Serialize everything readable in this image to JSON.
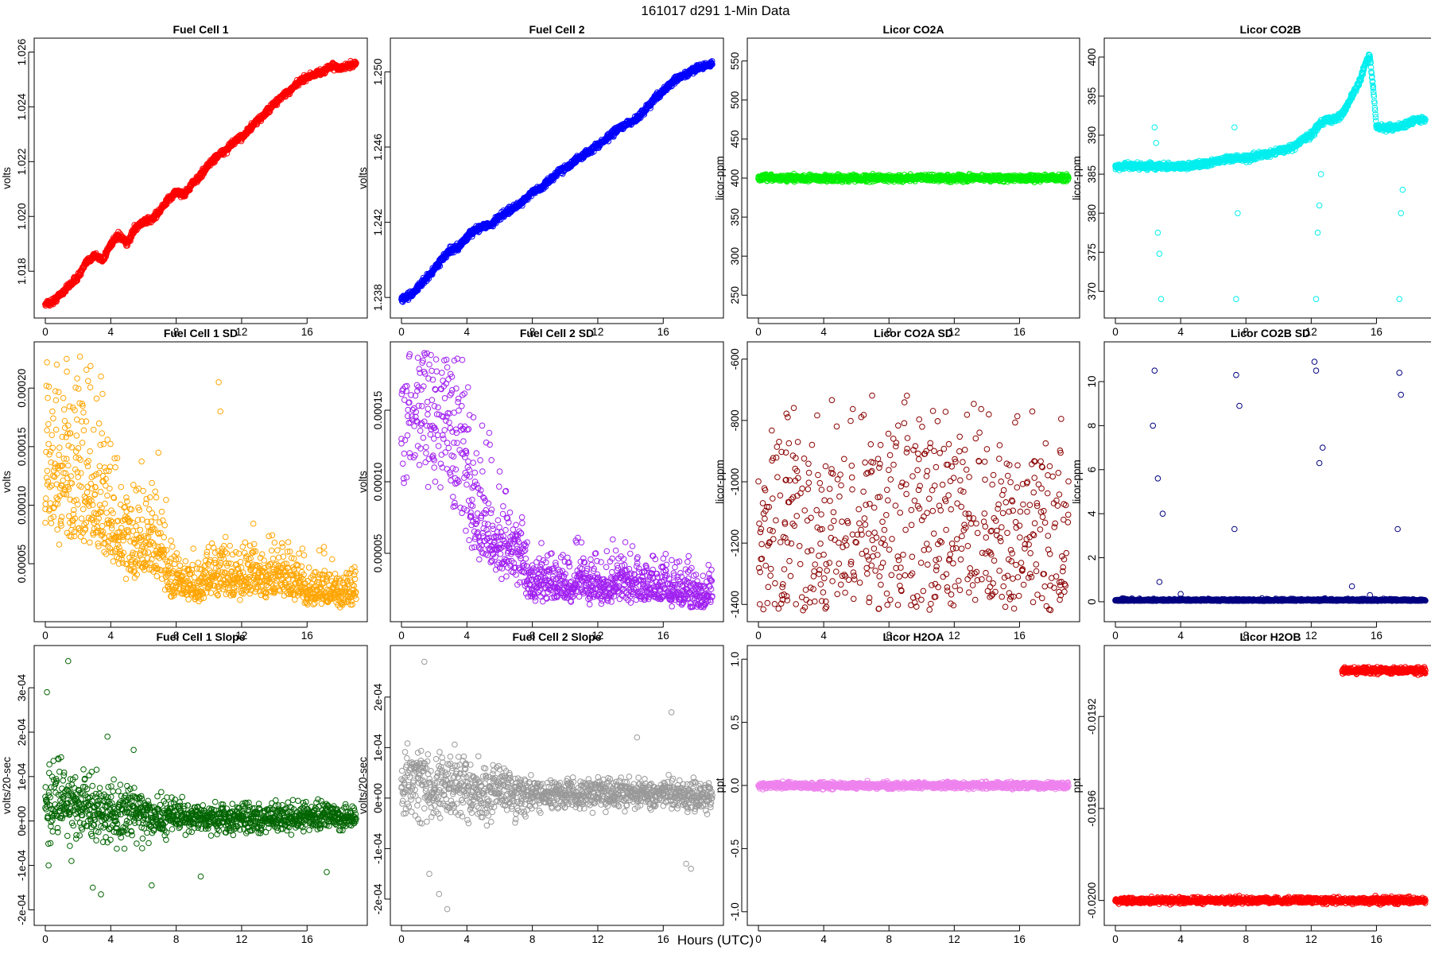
{
  "figure": {
    "title": "161017   d291   1-Min Data",
    "xlabel": "Hours (UTC)"
  },
  "chart_data": [
    {
      "type": "scatter",
      "title": "Fuel Cell 1",
      "ylabel": "volts",
      "color": "#ff0000",
      "xlim": [
        0,
        19
      ],
      "ylim": [
        1.0167,
        1.0261
      ],
      "xticks": [
        0,
        4,
        8,
        12,
        16
      ],
      "yticks": [
        1.018,
        1.02,
        1.022,
        1.024,
        1.026
      ],
      "ytick_labels": [
        "1.018",
        "1.020",
        "1.022",
        "1.024",
        "1.026"
      ],
      "series": [
        {
          "x": [
            0,
            0.5,
            1,
            1.5,
            2,
            2.5,
            3,
            3.5,
            4,
            4.5,
            5,
            5.5,
            6,
            6.5,
            7,
            7.5,
            8,
            8.5,
            9,
            9.5,
            10,
            10.5,
            11,
            11.5,
            12,
            12.5,
            13,
            13.5,
            14,
            14.5,
            15,
            15.5,
            16,
            16.5,
            17,
            17.5,
            18,
            18.5,
            19
          ],
          "y": [
            1.0168,
            1.0169,
            1.0172,
            1.0175,
            1.0178,
            1.0183,
            1.0186,
            1.0184,
            1.019,
            1.0193,
            1.019,
            1.0196,
            1.0198,
            1.0199,
            1.0202,
            1.0206,
            1.0209,
            1.0208,
            1.0212,
            1.0215,
            1.0219,
            1.0222,
            1.0224,
            1.0227,
            1.0229,
            1.0232,
            1.0235,
            1.0238,
            1.0241,
            1.0244,
            1.0246,
            1.0249,
            1.0251,
            1.0252,
            1.0253,
            1.0255,
            1.0254,
            1.0255,
            1.0256
          ]
        }
      ]
    },
    {
      "type": "scatter",
      "title": "Fuel Cell 2",
      "ylabel": "volts",
      "color": "#0000ff",
      "xlim": [
        0,
        19
      ],
      "ylim": [
        1.2375,
        1.2512
      ],
      "xticks": [
        0,
        4,
        8,
        12,
        16
      ],
      "yticks": [
        1.238,
        1.242,
        1.246,
        1.25
      ],
      "ytick_labels": [
        "1.238",
        "1.242",
        "1.246",
        "1.250"
      ],
      "series": [
        {
          "x": [
            0,
            0.5,
            1,
            1.5,
            2,
            2.5,
            3,
            3.5,
            4,
            4.5,
            5,
            5.5,
            6,
            6.5,
            7,
            7.5,
            8,
            8.5,
            9,
            9.5,
            10,
            10.5,
            11,
            11.5,
            12,
            12.5,
            13,
            13.5,
            14,
            14.5,
            15,
            15.5,
            16,
            16.5,
            17,
            17.5,
            18,
            18.5,
            19
          ],
          "y": [
            1.2379,
            1.2381,
            1.2385,
            1.239,
            1.2395,
            1.2401,
            1.2405,
            1.2407,
            1.2412,
            1.2416,
            1.2418,
            1.2419,
            1.2423,
            1.2426,
            1.2428,
            1.2432,
            1.2436,
            1.2438,
            1.2442,
            1.2446,
            1.2449,
            1.2452,
            1.2455,
            1.2458,
            1.2461,
            1.2464,
            1.2468,
            1.2471,
            1.2473,
            1.2476,
            1.2481,
            1.2486,
            1.249,
            1.2494,
            1.2497,
            1.2499,
            1.2502,
            1.2503,
            1.2504
          ]
        }
      ]
    },
    {
      "type": "scatter",
      "title": "Licor CO2A",
      "ylabel": "licor-ppm",
      "color": "#00ee00",
      "xlim": [
        0,
        19
      ],
      "ylim": [
        235,
        565
      ],
      "xticks": [
        0,
        4,
        8,
        12,
        16
      ],
      "yticks": [
        250,
        300,
        350,
        400,
        450,
        500,
        550
      ],
      "ytick_labels": [
        "250",
        "300",
        "350",
        "400",
        "450",
        "500",
        "550"
      ],
      "series": [
        {
          "x": [
            0,
            19
          ],
          "y": [
            400,
            400
          ]
        }
      ]
    },
    {
      "type": "scatter",
      "title": "Licor CO2B",
      "ylabel": "licor-ppm",
      "color": "#00eeee",
      "xlim": [
        0,
        19
      ],
      "ylim": [
        368,
        401
      ],
      "xticks": [
        0,
        4,
        8,
        12,
        16
      ],
      "yticks": [
        370,
        375,
        380,
        385,
        390,
        395,
        400
      ],
      "ytick_labels": [
        "370",
        "375",
        "380",
        "385",
        "390",
        "395",
        "400"
      ],
      "series": [
        {
          "x": [
            0,
            1,
            2,
            2.3,
            3,
            4,
            5,
            6,
            7,
            8,
            9,
            10,
            11,
            11.5,
            12,
            12.5,
            13,
            13.5,
            14,
            14.5,
            15,
            15.3,
            15.6,
            15.8,
            16,
            16.5,
            17,
            18,
            18.5,
            19,
            2.4,
            2.5,
            2.6,
            2.7,
            2.8,
            7.3,
            7.4,
            7.5,
            12.2,
            12.3,
            12.4,
            12.5,
            12.6,
            17.3,
            17.4,
            17.5,
            17.6
          ],
          "y": [
            386,
            386,
            386,
            386,
            386,
            386,
            386.2,
            386.6,
            387,
            387,
            387.5,
            388,
            388.5,
            389.5,
            390,
            391.5,
            392,
            392,
            393,
            395,
            397,
            399,
            400,
            396,
            391,
            391,
            391,
            391.5,
            392,
            392,
            391,
            389,
            377.5,
            374.8,
            369,
            391,
            369,
            380,
            390,
            369,
            377.5,
            381,
            385,
            391,
            369,
            380,
            383
          ]
        }
      ]
    },
    {
      "type": "scatter",
      "title": "Fuel Cell 1 SD",
      "ylabel": "volts",
      "color": "#ffa500",
      "xlim": [
        0,
        19
      ],
      "ylim": [
        1e-05,
        0.00023
      ],
      "xticks": [
        0,
        4,
        8,
        12,
        16
      ],
      "yticks": [
        5e-05,
        0.0001,
        0.00015,
        0.0002
      ],
      "ytick_labels": [
        "0.00005",
        "0.00010",
        "0.00015",
        "0.00020"
      ],
      "series": [
        {
          "x": [
            0,
            0.5,
            1,
            1.5,
            2,
            2.5,
            3,
            3.5,
            4,
            4.5,
            5,
            5.5,
            6,
            6.5,
            7,
            7.5,
            8,
            8.5,
            9,
            9.5,
            10,
            10.5,
            11,
            11.5,
            12,
            12.5,
            13,
            13.5,
            14,
            14.5,
            15,
            15.5,
            16,
            16.5,
            17,
            17.5,
            18,
            18.5,
            19,
            0.1,
            0.7,
            1.3,
            3.4,
            3.5,
            10.6,
            10.7,
            1.4
          ],
          "y": [
            8.5e-05,
            9e-05,
            9e-05,
            8.5e-05,
            8e-05,
            8.5e-05,
            8e-05,
            7.5e-05,
            6e-05,
            5e-05,
            5e-05,
            5e-05,
            5e-05,
            4.5e-05,
            4.5e-05,
            3e-05,
            3e-05,
            2.5e-05,
            2.5e-05,
            2e-05,
            3e-05,
            3e-05,
            3e-05,
            2.5e-05,
            2.5e-05,
            3e-05,
            3e-05,
            2.5e-05,
            2.5e-05,
            3e-05,
            2.5e-05,
            2.5e-05,
            2e-05,
            2e-05,
            2e-05,
            2e-05,
            1.8e-05,
            1.8e-05,
            2e-05,
            0.000222,
            0.00022,
            0.000225,
            0.00021,
            0.000195,
            0.000205,
            0.00018,
            0.000168
          ]
        }
      ]
    },
    {
      "type": "scatter",
      "title": "Fuel Cell 2 SD",
      "ylabel": "volts",
      "color": "#a020f0",
      "xlim": [
        0,
        19
      ],
      "ylim": [
        1e-05,
        0.00019
      ],
      "xticks": [
        0,
        4,
        8,
        12,
        16
      ],
      "yticks": [
        5e-05,
        0.0001,
        0.00015
      ],
      "ytick_labels": [
        "0.00005",
        "0.00010",
        "0.00015"
      ],
      "series": [
        {
          "x": [
            0,
            0.5,
            1,
            1.5,
            2,
            2.5,
            3,
            3.5,
            4,
            4.5,
            5,
            5.5,
            6,
            6.5,
            7,
            7.5,
            8,
            8.5,
            9,
            9.5,
            10,
            10.5,
            11,
            11.5,
            12,
            12.5,
            13,
            13.5,
            14,
            14.5,
            15,
            15.5,
            16,
            16.5,
            17,
            17.5,
            18,
            18.5,
            19,
            1.4,
            2.4,
            2.8
          ],
          "y": [
            0.00013,
            0.00012,
            0.000125,
            0.00012,
            0.000115,
            0.00011,
            0.000105,
            0.0001,
            8e-05,
            6e-05,
            5e-05,
            4.5e-05,
            4e-05,
            4e-05,
            3.5e-05,
            3e-05,
            2e-05,
            2e-05,
            2.5e-05,
            2e-05,
            2e-05,
            2e-05,
            2.5e-05,
            2e-05,
            2e-05,
            2e-05,
            2e-05,
            2.5e-05,
            2e-05,
            2e-05,
            2e-05,
            2e-05,
            2e-05,
            1.8e-05,
            1.8e-05,
            1.8e-05,
            1.5e-05,
            1.5e-05,
            2e-05,
            0.00019,
            0.000165,
            0.00018
          ]
        }
      ]
    },
    {
      "type": "scatter",
      "title": "Licor CO2A SD",
      "ylabel": "licor-ppm",
      "color": "#8b0000",
      "xlim": [
        0,
        19
      ],
      "ylim": [
        -1420,
        -580
      ],
      "xticks": [
        0,
        4,
        8,
        12,
        16
      ],
      "yticks": [
        -1400,
        -1200,
        -1000,
        -800,
        -600
      ],
      "ytick_labels": [
        "-1400",
        "-1200",
        "-1000",
        "-800",
        "-600"
      ],
      "series": [
        {
          "x": [
            0,
            19
          ],
          "y": [
            -999,
            -999
          ]
        }
      ]
    },
    {
      "type": "scatter",
      "title": "Licor CO2B SD",
      "ylabel": "licor-ppm",
      "color": "#000080",
      "xlim": [
        0,
        19
      ],
      "ylim": [
        -0.4,
        11.3
      ],
      "xticks": [
        0,
        4,
        8,
        12,
        16
      ],
      "yticks": [
        0,
        2,
        4,
        6,
        8,
        10
      ],
      "ytick_labels": [
        "0",
        "2",
        "4",
        "6",
        "8",
        "10"
      ],
      "series": [
        {
          "x": [
            0,
            2,
            4,
            6,
            8,
            10,
            12,
            14,
            16,
            18,
            19,
            2.3,
            2.4,
            2.6,
            2.7,
            2.9,
            7.3,
            7.4,
            7.6,
            12.2,
            12.3,
            12.5,
            12.7,
            17.3,
            17.4,
            17.5,
            4,
            14.5,
            15.6
          ],
          "y": [
            0.05,
            0.05,
            0.05,
            0.05,
            0.05,
            0.05,
            0.05,
            0.05,
            0.05,
            0.05,
            0.05,
            8,
            10.5,
            5.6,
            0.9,
            4,
            3.3,
            10.3,
            8.9,
            10.9,
            10.5,
            6.3,
            7,
            3.3,
            10.4,
            9.4,
            0.35,
            0.7,
            0.3
          ]
        }
      ]
    },
    {
      "type": "scatter",
      "title": "Fuel Cell 1 Slope",
      "ylabel": "volts/20-sec",
      "color": "#006400",
      "xlim": [
        0,
        19
      ],
      "ylim": [
        -0.00021,
        0.00037
      ],
      "xticks": [
        0,
        4,
        8,
        12,
        16
      ],
      "yticks": [
        -0.0002,
        -0.0001,
        0,
        0.0001,
        0.0002,
        0.0003
      ],
      "ytick_labels": [
        "-2e-04",
        "-1e-04",
        "0e+00",
        "1e-04",
        "2e-04",
        "3e-04"
      ],
      "series": [
        {
          "x": [
            0,
            1,
            2,
            3,
            4,
            5,
            6,
            7,
            8,
            9,
            10,
            11,
            12,
            13,
            14,
            15,
            16,
            17,
            18,
            19,
            0.1,
            1.4,
            3.4,
            5.4,
            0.2,
            2.9,
            6.5,
            9.5,
            17.2,
            3.8,
            1.6
          ],
          "y": [
            3e-05,
            4e-05,
            2e-05,
            3e-05,
            1e-05,
            2e-05,
            1.5e-05,
            1e-05,
            1e-05,
            5e-06,
            1e-05,
            5e-06,
            1e-05,
            5e-06,
            1e-05,
            5e-06,
            1e-05,
            1e-05,
            5e-06,
            5e-06,
            0.00029,
            0.00036,
            -0.000165,
            0.00016,
            -0.0001,
            -0.00015,
            -0.000145,
            -0.000125,
            -0.000115,
            0.00019,
            -9e-05
          ]
        }
      ]
    },
    {
      "type": "scatter",
      "title": "Fuel Cell 2 Slope",
      "ylabel": "volts/20-sec",
      "color": "#999999",
      "xlim": [
        0,
        19
      ],
      "ylim": [
        -0.00023,
        0.00028
      ],
      "xticks": [
        0,
        4,
        8,
        12,
        16
      ],
      "yticks": [
        -0.0002,
        -0.0001,
        0,
        0.0001,
        0.0002
      ],
      "ytick_labels": [
        "-2e-04",
        "-1e-04",
        "0e+00",
        "1e-04",
        "2e-04"
      ],
      "series": [
        {
          "x": [
            0,
            1,
            2,
            3,
            4,
            5,
            6,
            7,
            8,
            9,
            10,
            11,
            12,
            13,
            14,
            15,
            16,
            17,
            18,
            19,
            1.4,
            2.8,
            2.3,
            1.7,
            14.4,
            16.5,
            17.4,
            17.7
          ],
          "y": [
            2e-05,
            4e-05,
            2e-05,
            3e-05,
            2e-05,
            1e-05,
            2e-05,
            1e-05,
            1e-05,
            5e-06,
            1e-05,
            5e-06,
            1e-05,
            5e-06,
            1e-05,
            5e-06,
            1e-05,
            5e-06,
            5e-06,
            5e-06,
            0.00027,
            -0.00022,
            -0.00019,
            -0.00015,
            0.00012,
            0.00017,
            -0.00013,
            -0.00014
          ]
        }
      ]
    },
    {
      "type": "scatter",
      "title": "Licor H2OA",
      "ylabel": "ppt",
      "color": "#ee82ee",
      "xlim": [
        0,
        19
      ],
      "ylim": [
        -1.02,
        1.02
      ],
      "xticks": [
        0,
        4,
        8,
        12,
        16
      ],
      "yticks": [
        -1.0,
        -0.5,
        0.0,
        0.5,
        1.0
      ],
      "ytick_labels": [
        "-1.0",
        "-0.5",
        "0.0",
        "0.5",
        "1.0"
      ],
      "series": [
        {
          "x": [
            0,
            19
          ],
          "y": [
            0,
            0
          ]
        }
      ]
    },
    {
      "type": "scatter",
      "title": "Licor H2OB",
      "ylabel": "ppt",
      "color": "#ff0000",
      "xlim": [
        0,
        19
      ],
      "ylim": [
        -0.02006,
        -0.01894
      ],
      "xticks": [
        0,
        4,
        8,
        12,
        16
      ],
      "yticks": [
        -0.02,
        -0.0196,
        -0.0192
      ],
      "ytick_labels": [
        "-0.0200",
        "-0.0196",
        "-0.0192"
      ],
      "series": [
        {
          "x": [
            0,
            19
          ],
          "y": [
            -0.02,
            -0.02
          ]
        },
        {
          "x": [
            13.9,
            19
          ],
          "y": [
            -0.019,
            -0.019
          ]
        }
      ]
    }
  ]
}
